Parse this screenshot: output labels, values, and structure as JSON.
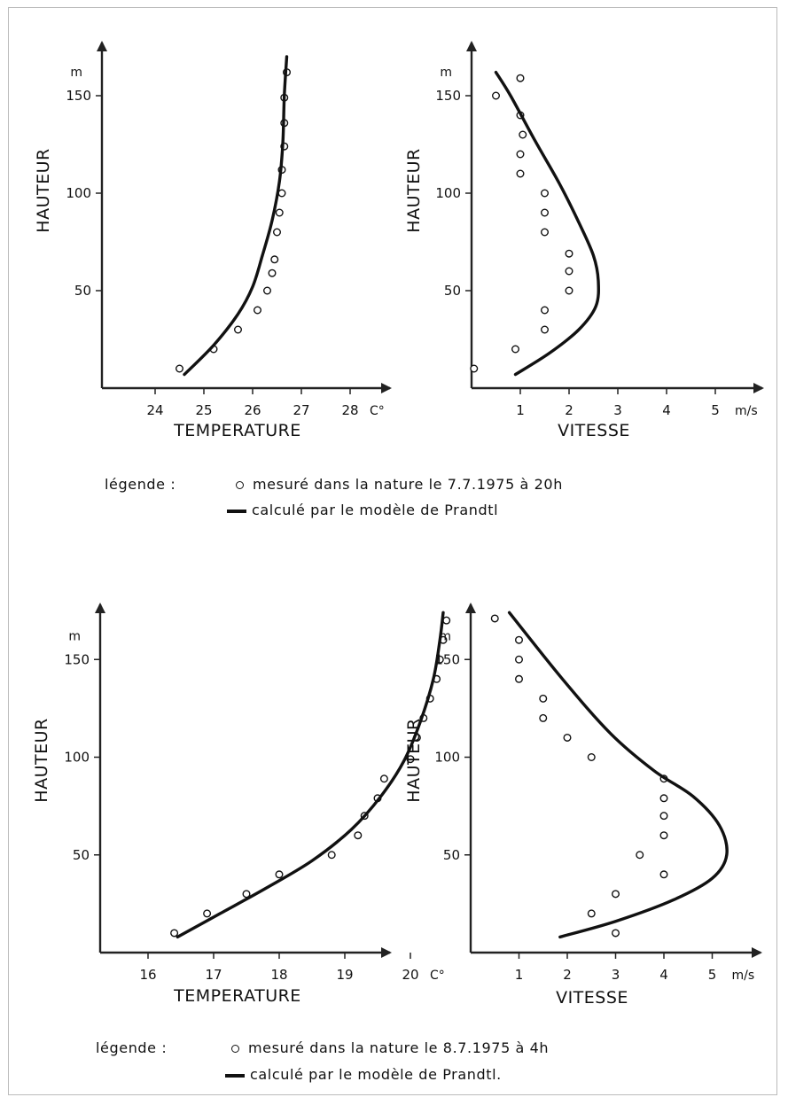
{
  "chart_data": [
    {
      "type": "scatter",
      "xlabel": "TEMPERATURE",
      "ylabel": "HAUTEUR",
      "x_unit": "C°",
      "y_unit": "m",
      "xlim": [
        23.0,
        29.0
      ],
      "ylim": [
        0,
        180
      ],
      "x_ticks": [
        24,
        25,
        26,
        27,
        28
      ],
      "y_ticks": [
        50,
        100,
        150
      ],
      "series": [
        {
          "style": "points",
          "points": [
            [
              24.5,
              10
            ],
            [
              25.2,
              20
            ],
            [
              25.7,
              30
            ],
            [
              26.1,
              40
            ],
            [
              26.3,
              50
            ],
            [
              26.4,
              59
            ],
            [
              26.45,
              66
            ],
            [
              26.5,
              80
            ],
            [
              26.55,
              90
            ],
            [
              26.6,
              100
            ],
            [
              26.6,
              112
            ],
            [
              26.65,
              124
            ],
            [
              26.65,
              136
            ],
            [
              26.65,
              149
            ],
            [
              26.7,
              162
            ]
          ]
        },
        {
          "style": "line",
          "points": [
            [
              24.6,
              7
            ],
            [
              25.2,
              22
            ],
            [
              25.7,
              38
            ],
            [
              26.0,
              52
            ],
            [
              26.2,
              68
            ],
            [
              26.4,
              86
            ],
            [
              26.55,
              106
            ],
            [
              26.62,
              126
            ],
            [
              26.65,
              150
            ],
            [
              26.7,
              170
            ]
          ]
        }
      ]
    },
    {
      "type": "scatter",
      "xlabel": "VITESSE",
      "ylabel": "HAUTEUR",
      "x_unit": "m/s",
      "y_unit": "m",
      "xlim": [
        0,
        5.8
      ],
      "ylim": [
        0,
        180
      ],
      "x_ticks": [
        1,
        2,
        3,
        4,
        5
      ],
      "y_ticks": [
        50,
        100,
        150
      ],
      "series": [
        {
          "style": "points",
          "points": [
            [
              0.05,
              10
            ],
            [
              0.9,
              20
            ],
            [
              1.5,
              30
            ],
            [
              1.5,
              40
            ],
            [
              2.0,
              50
            ],
            [
              2.0,
              60
            ],
            [
              2.0,
              69
            ],
            [
              1.5,
              80
            ],
            [
              1.5,
              90
            ],
            [
              1.5,
              100
            ],
            [
              1.0,
              110
            ],
            [
              1.0,
              120
            ],
            [
              1.05,
              130
            ],
            [
              1.0,
              140
            ],
            [
              0.5,
              150
            ],
            [
              1.0,
              159
            ]
          ]
        },
        {
          "style": "line",
          "points": [
            [
              0.9,
              7
            ],
            [
              1.6,
              18
            ],
            [
              2.2,
              30
            ],
            [
              2.55,
              42
            ],
            [
              2.6,
              55
            ],
            [
              2.5,
              68
            ],
            [
              2.2,
              85
            ],
            [
              1.8,
              105
            ],
            [
              1.3,
              127
            ],
            [
              0.8,
              150
            ],
            [
              0.5,
              162
            ]
          ]
        }
      ]
    },
    {
      "type": "scatter",
      "xlabel": "TEMPERATURE",
      "ylabel": "HAUTEUR",
      "x_unit": "C°",
      "y_unit": "m",
      "xlim": [
        15.0,
        21.0
      ],
      "ylim": [
        0,
        180
      ],
      "x_ticks": [
        16,
        17,
        18,
        19,
        20
      ],
      "y_ticks": [
        50,
        100,
        150
      ],
      "series": [
        {
          "style": "points",
          "points": [
            [
              16.4,
              10
            ],
            [
              16.9,
              20
            ],
            [
              17.5,
              30
            ],
            [
              18.0,
              40
            ],
            [
              18.8,
              50
            ],
            [
              19.2,
              60
            ],
            [
              19.3,
              70
            ],
            [
              19.5,
              79
            ],
            [
              19.6,
              89
            ],
            [
              20.0,
              99
            ],
            [
              20.1,
              110
            ],
            [
              20.2,
              120
            ],
            [
              20.3,
              130
            ],
            [
              20.4,
              140
            ],
            [
              20.45,
              150
            ],
            [
              20.5,
              160
            ],
            [
              20.55,
              170
            ]
          ]
        },
        {
          "style": "line",
          "points": [
            [
              16.45,
              8
            ],
            [
              17.1,
              20
            ],
            [
              17.8,
              33
            ],
            [
              18.5,
              47
            ],
            [
              19.1,
              63
            ],
            [
              19.55,
              80
            ],
            [
              19.9,
              98
            ],
            [
              20.15,
              118
            ],
            [
              20.35,
              140
            ],
            [
              20.45,
              160
            ],
            [
              20.5,
              174
            ]
          ]
        }
      ]
    },
    {
      "type": "scatter",
      "xlabel": "VITESSE",
      "ylabel": "HAUTEUR",
      "x_unit": "m/s",
      "y_unit": "m",
      "xlim": [
        0,
        5.8
      ],
      "ylim": [
        0,
        180
      ],
      "x_ticks": [
        1,
        2,
        3,
        4,
        5
      ],
      "y_ticks": [
        50,
        100,
        150
      ],
      "series": [
        {
          "style": "points",
          "points": [
            [
              3.0,
              10
            ],
            [
              2.5,
              20
            ],
            [
              3.0,
              30
            ],
            [
              4.0,
              40
            ],
            [
              3.5,
              50
            ],
            [
              4.0,
              60
            ],
            [
              4.0,
              70
            ],
            [
              4.0,
              79
            ],
            [
              4.0,
              89
            ],
            [
              2.5,
              100
            ],
            [
              2.0,
              110
            ],
            [
              1.5,
              120
            ],
            [
              1.5,
              130
            ],
            [
              1.0,
              140
            ],
            [
              1.0,
              150
            ],
            [
              1.0,
              160
            ],
            [
              0.5,
              171
            ]
          ]
        },
        {
          "style": "line",
          "points": [
            [
              1.85,
              8
            ],
            [
              3.0,
              16
            ],
            [
              4.2,
              27
            ],
            [
              5.0,
              38
            ],
            [
              5.3,
              50
            ],
            [
              5.15,
              65
            ],
            [
              4.6,
              80
            ],
            [
              3.8,
              93
            ],
            [
              2.9,
              112
            ],
            [
              1.9,
              140
            ],
            [
              0.8,
              174
            ]
          ]
        }
      ]
    }
  ],
  "legends": [
    {
      "title": "légende :",
      "measured": "mesuré dans la nature le 7.7.1975 à 20h",
      "computed": "calculé par le modèle de Prandtl"
    },
    {
      "title": "légende :",
      "measured": "mesuré dans la nature le 8.7.1975 à 4h",
      "computed": "calculé par le modèle de Prandtl."
    }
  ]
}
